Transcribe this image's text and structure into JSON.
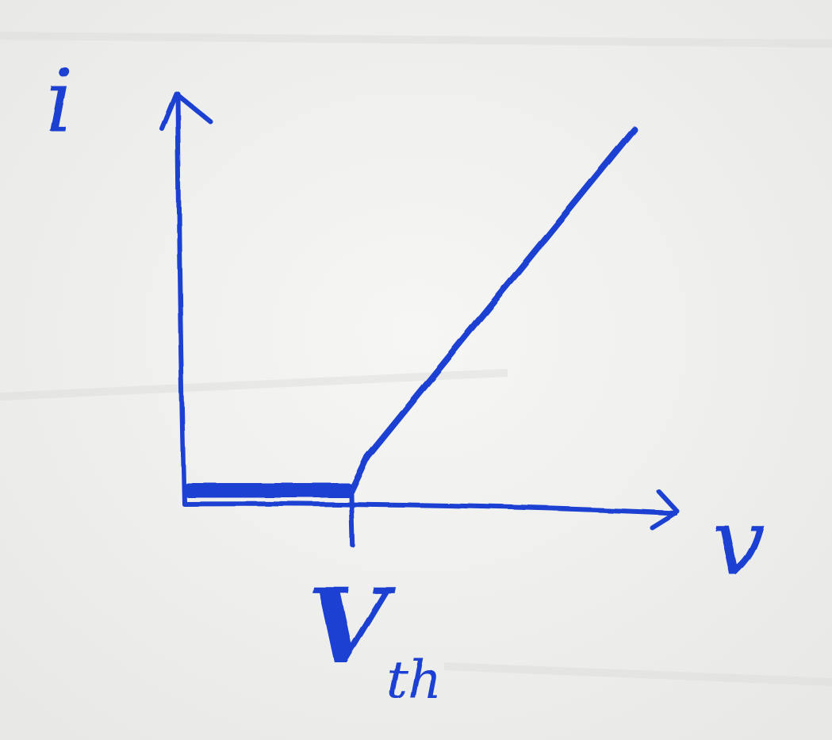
{
  "chart_data": {
    "type": "line",
    "title": "",
    "xlabel": "v",
    "ylabel": "i",
    "x_ticks": [
      {
        "label_main": "V",
        "label_sub": "th",
        "value": 1
      }
    ],
    "xlim": [
      0,
      2.95
    ],
    "ylim": [
      0,
      2.35
    ],
    "series": [
      {
        "x": [
          0,
          1,
          1.1,
          2.7
        ],
        "y": [
          0,
          0,
          0.2,
          2.05
        ]
      }
    ],
    "grid": false,
    "legend": "none"
  },
  "colors": {
    "ink": "#1a3fd1",
    "paper": "#f2f2f0"
  }
}
